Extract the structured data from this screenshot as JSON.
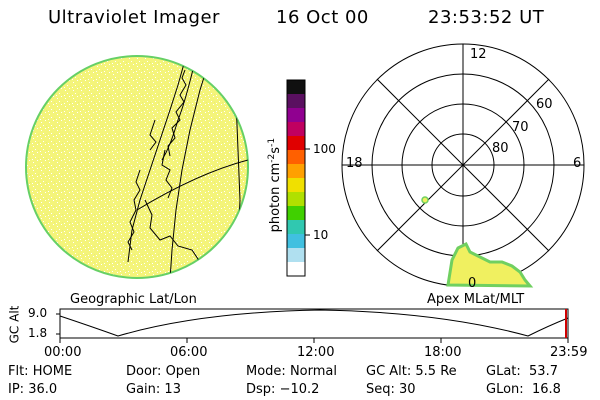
{
  "header": {
    "instrument": "Ultraviolet Imager",
    "date": "16 Oct 00",
    "time": "23:53:52 UT"
  },
  "geo_panel": {
    "label": "Geographic Lat/Lon",
    "fill_color": "#f4f47a",
    "rim_color": "#66d066"
  },
  "colorbar": {
    "unit_label": "photon cm",
    "unit_sup1": "-2",
    "unit_mid": "s",
    "unit_sup2": "-1",
    "tick_labels": [
      "100",
      "10"
    ],
    "colors": [
      "#101010",
      "#5a1060",
      "#900090",
      "#c00060",
      "#e00000",
      "#ff6000",
      "#ffa000",
      "#f0e000",
      "#b0e000",
      "#40d000",
      "#30c8b0",
      "#40c0e0",
      "#b0e0f0",
      "#ffffff"
    ]
  },
  "polar_panel": {
    "label": "Apex MLat/MLT",
    "mlt_labels": {
      "top": "12",
      "left": "18",
      "right": "6",
      "bottom": "0"
    },
    "lat_labels": [
      "60",
      "70",
      "80"
    ]
  },
  "timeline": {
    "y_axis_label": "GC Alt",
    "y_ticks": [
      "9.0",
      "1.8"
    ],
    "x_ticks": [
      "00:00",
      "06:00",
      "12:00",
      "18:00",
      "23:59"
    ]
  },
  "status": {
    "row1": [
      {
        "label": "Flt:",
        "value": "HOME"
      },
      {
        "label": "Door:",
        "value": "Open"
      },
      {
        "label": "Mode:",
        "value": "Normal"
      },
      {
        "label": "GC Alt:",
        "value": "5.5 Re"
      },
      {
        "label": "GLat:",
        "value": "53.7"
      }
    ],
    "row2": [
      {
        "label": "IP:",
        "value": "36.0"
      },
      {
        "label": "Gain:",
        "value": "13"
      },
      {
        "label": "Dsp:",
        "value": "−10.2"
      },
      {
        "label": "Seq:",
        "value": "30"
      },
      {
        "label": "GLon:",
        "value": "16.8"
      }
    ]
  }
}
